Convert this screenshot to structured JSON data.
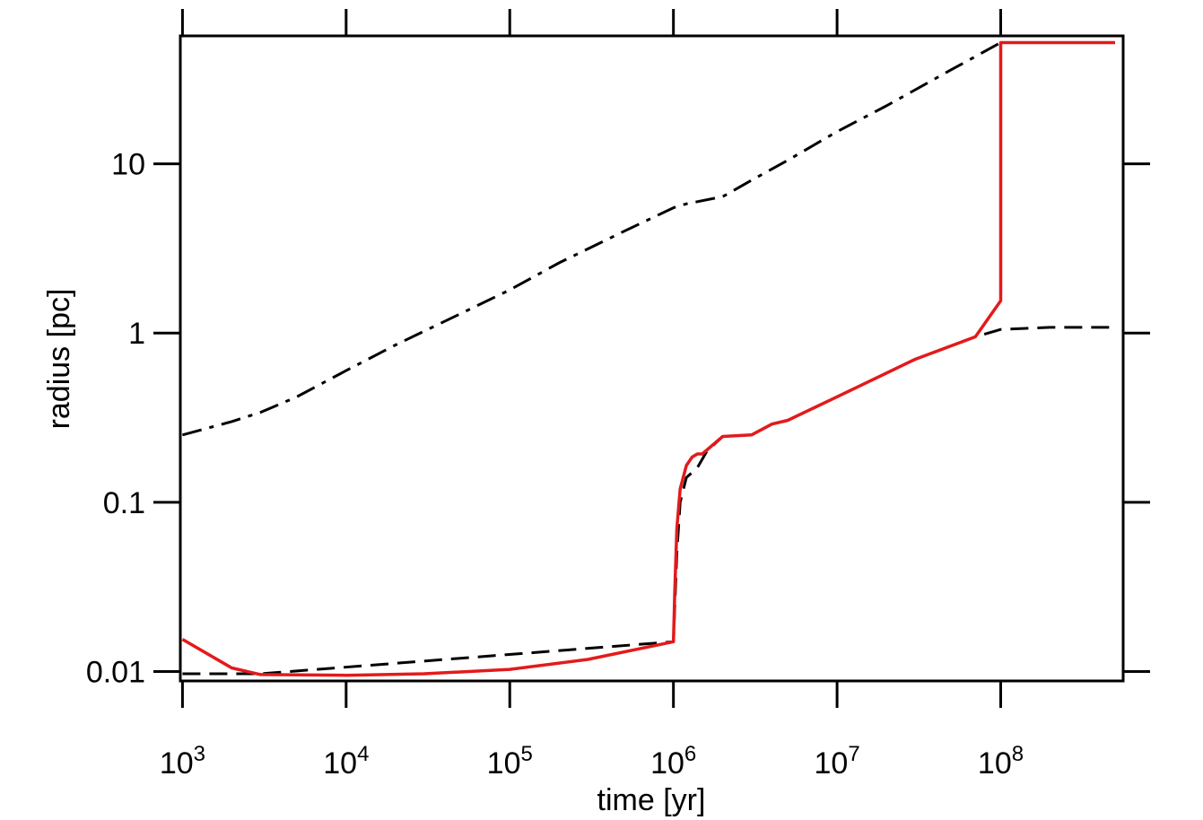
{
  "chart_data": {
    "type": "line",
    "title": "",
    "xlabel": "time  [yr]",
    "ylabel": "radius [pc]",
    "x_scale": "log",
    "y_scale": "log",
    "xlim": [
      970,
      560000000
    ],
    "ylim": [
      0.0088,
      57
    ],
    "x_ticks": [
      {
        "value": 1000,
        "base": "10",
        "exp": "3"
      },
      {
        "value": 10000,
        "base": "10",
        "exp": "4"
      },
      {
        "value": 100000,
        "base": "10",
        "exp": "5"
      },
      {
        "value": 1000000,
        "base": "10",
        "exp": "6"
      },
      {
        "value": 10000000,
        "base": "10",
        "exp": "7"
      },
      {
        "value": 100000000,
        "base": "10",
        "exp": "8"
      }
    ],
    "y_ticks": [
      {
        "value": 0.01,
        "label": "0.01"
      },
      {
        "value": 0.1,
        "label": "0.1"
      },
      {
        "value": 1,
        "label": "1"
      },
      {
        "value": 10,
        "label": "10"
      }
    ],
    "grid": false,
    "legend": "none",
    "series": [
      {
        "style": "dash-dot",
        "color": "#000000",
        "points": [
          [
            1000,
            0.25
          ],
          [
            2000,
            0.3
          ],
          [
            3000,
            0.34
          ],
          [
            5000,
            0.42
          ],
          [
            10000,
            0.6
          ],
          [
            20000,
            0.85
          ],
          [
            50000,
            1.3
          ],
          [
            100000,
            1.8
          ],
          [
            200000,
            2.6
          ],
          [
            500000,
            4.0
          ],
          [
            1000000,
            5.5
          ],
          [
            1200000,
            5.8
          ],
          [
            2000000,
            6.4
          ],
          [
            3000000,
            8.0
          ],
          [
            5000000,
            10.5
          ],
          [
            10000000,
            15.5
          ],
          [
            20000000,
            22
          ],
          [
            50000000,
            36
          ],
          [
            100000000,
            52
          ]
        ]
      },
      {
        "style": "dashed",
        "color": "#000000",
        "points": [
          [
            1000,
            0.0097
          ],
          [
            3000,
            0.0097
          ],
          [
            1000000,
            0.015
          ],
          [
            1050000,
            0.05
          ],
          [
            1100000,
            0.1
          ],
          [
            1200000,
            0.14
          ],
          [
            1400000,
            0.16
          ],
          [
            1600000,
            0.2
          ],
          [
            2000000,
            0.245
          ],
          [
            3000000,
            0.25
          ],
          [
            4000000,
            0.29
          ],
          [
            5000000,
            0.305
          ],
          [
            10000000,
            0.42
          ],
          [
            20000000,
            0.58
          ],
          [
            30000000,
            0.7
          ],
          [
            70000000,
            0.95
          ],
          [
            100000000,
            1.05
          ],
          [
            200000000,
            1.08
          ],
          [
            500000000,
            1.08
          ]
        ]
      },
      {
        "style": "solid",
        "color": "#e31a1c",
        "points": [
          [
            1000,
            0.0155
          ],
          [
            2000,
            0.0105
          ],
          [
            3000,
            0.0096
          ],
          [
            10000,
            0.0095
          ],
          [
            30000,
            0.0097
          ],
          [
            100000,
            0.0103
          ],
          [
            300000,
            0.0118
          ],
          [
            1000000,
            0.015
          ],
          [
            1020000,
            0.03
          ],
          [
            1050000,
            0.07
          ],
          [
            1100000,
            0.12
          ],
          [
            1200000,
            0.165
          ],
          [
            1300000,
            0.185
          ],
          [
            1400000,
            0.193
          ],
          [
            1500000,
            0.193
          ],
          [
            2000000,
            0.245
          ],
          [
            3000000,
            0.25
          ],
          [
            4000000,
            0.29
          ],
          [
            5000000,
            0.305
          ],
          [
            10000000,
            0.42
          ],
          [
            20000000,
            0.58
          ],
          [
            30000000,
            0.7
          ],
          [
            70000000,
            0.95
          ],
          [
            100000000,
            1.55
          ],
          [
            100000000,
            52
          ],
          [
            500000000,
            52
          ]
        ]
      }
    ]
  }
}
